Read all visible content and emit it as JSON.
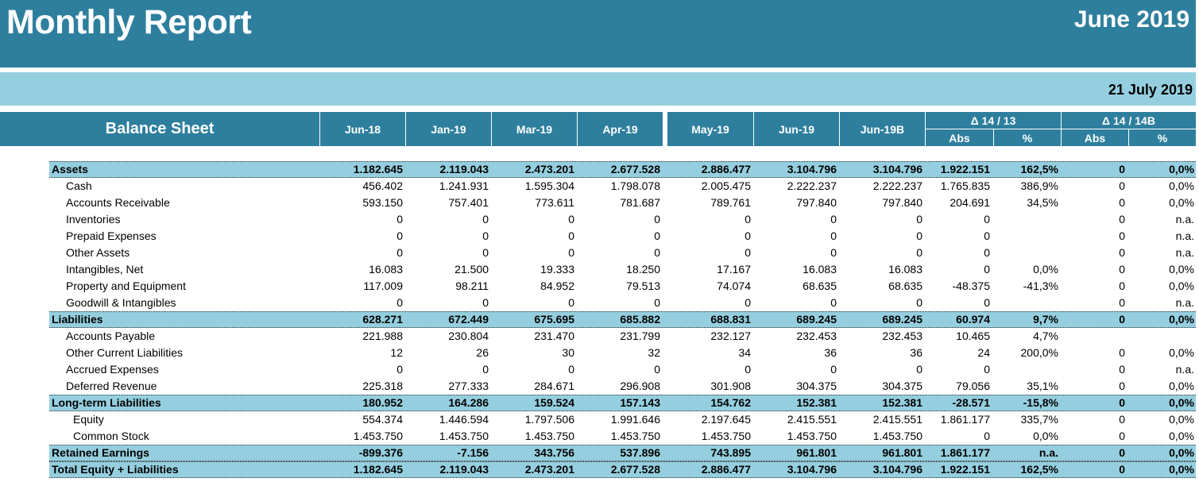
{
  "header": {
    "title": "Monthly Report",
    "period": "June 2019"
  },
  "subheader": {
    "date": "21 July 2019"
  },
  "table": {
    "title": "Balance Sheet",
    "columns": [
      "Jun-18",
      "Jan-19",
      "Mar-19",
      "Apr-19",
      "May-19",
      "Jun-19",
      "Jun-19B"
    ],
    "groups": [
      {
        "label": "Δ 14 / 13",
        "sub": [
          "Abs",
          "%"
        ]
      },
      {
        "label": "Δ 14 / 14B",
        "sub": [
          "Abs",
          "%"
        ]
      }
    ],
    "rows": [
      {
        "label": "Assets",
        "level": 0,
        "highlight": true,
        "values": [
          "1.182.645",
          "2.119.043",
          "2.473.201",
          "2.677.528",
          "2.886.477",
          "3.104.796",
          "3.104.796",
          "1.922.151",
          "162,5%",
          "0",
          "0,0%"
        ]
      },
      {
        "label": "Cash",
        "level": 1,
        "highlight": false,
        "values": [
          "456.402",
          "1.241.931",
          "1.595.304",
          "1.798.078",
          "2.005.475",
          "2.222.237",
          "2.222.237",
          "1.765.835",
          "386,9%",
          "0",
          "0,0%"
        ]
      },
      {
        "label": "Accounts Receivable",
        "level": 1,
        "highlight": false,
        "values": [
          "593.150",
          "757.401",
          "773.611",
          "781.687",
          "789.761",
          "797.840",
          "797.840",
          "204.691",
          "34,5%",
          "0",
          "0,0%"
        ]
      },
      {
        "label": "Inventories",
        "level": 1,
        "highlight": false,
        "values": [
          "0",
          "0",
          "0",
          "0",
          "0",
          "0",
          "0",
          "0",
          "",
          "0",
          "n.a."
        ]
      },
      {
        "label": "Prepaid Expenses",
        "level": 1,
        "highlight": false,
        "values": [
          "0",
          "0",
          "0",
          "0",
          "0",
          "0",
          "0",
          "0",
          "",
          "0",
          "n.a."
        ]
      },
      {
        "label": "Other Assets",
        "level": 1,
        "highlight": false,
        "values": [
          "0",
          "0",
          "0",
          "0",
          "0",
          "0",
          "0",
          "0",
          "",
          "0",
          "n.a."
        ]
      },
      {
        "label": "Intangibles, Net",
        "level": 1,
        "highlight": false,
        "values": [
          "16.083",
          "21.500",
          "19.333",
          "18.250",
          "17.167",
          "16.083",
          "16.083",
          "0",
          "0,0%",
          "0",
          "0,0%"
        ]
      },
      {
        "label": "Property and Equipment",
        "level": 1,
        "highlight": false,
        "values": [
          "117.009",
          "98.211",
          "84.952",
          "79.513",
          "74.074",
          "68.635",
          "68.635",
          "-48.375",
          "-41,3%",
          "0",
          "0,0%"
        ]
      },
      {
        "label": "Goodwill & Intangibles",
        "level": 1,
        "highlight": false,
        "values": [
          "0",
          "0",
          "0",
          "0",
          "0",
          "0",
          "0",
          "0",
          "",
          "0",
          "n.a."
        ]
      },
      {
        "label": "Liabilities",
        "level": 0,
        "highlight": true,
        "values": [
          "628.271",
          "672.449",
          "675.695",
          "685.882",
          "688.831",
          "689.245",
          "689.245",
          "60.974",
          "9,7%",
          "0",
          "0,0%"
        ]
      },
      {
        "label": "Accounts Payable",
        "level": 1,
        "highlight": false,
        "values": [
          "221.988",
          "230.804",
          "231.470",
          "231.799",
          "232.127",
          "232.453",
          "232.453",
          "10.465",
          "4,7%",
          "",
          ""
        ]
      },
      {
        "label": "Other Current Liabilities",
        "level": 1,
        "highlight": false,
        "values": [
          "12",
          "26",
          "30",
          "32",
          "34",
          "36",
          "36",
          "24",
          "200,0%",
          "0",
          "0,0%"
        ]
      },
      {
        "label": "Accrued Expenses",
        "level": 1,
        "highlight": false,
        "values": [
          "0",
          "0",
          "0",
          "0",
          "0",
          "0",
          "0",
          "0",
          "",
          "0",
          "n.a."
        ]
      },
      {
        "label": "Deferred Revenue",
        "level": 1,
        "highlight": false,
        "values": [
          "225.318",
          "277.333",
          "284.671",
          "296.908",
          "301.908",
          "304.375",
          "304.375",
          "79.056",
          "35,1%",
          "0",
          "0,0%"
        ]
      },
      {
        "label": "Long-term Liabilities",
        "level": 0,
        "highlight": true,
        "values": [
          "180.952",
          "164.286",
          "159.524",
          "157.143",
          "154.762",
          "152.381",
          "152.381",
          "-28.571",
          "-15,8%",
          "0",
          "0,0%"
        ]
      },
      {
        "label": "Equity",
        "level": 2,
        "highlight": false,
        "values": [
          "554.374",
          "1.446.594",
          "1.797.506",
          "1.991.646",
          "2.197.645",
          "2.415.551",
          "2.415.551",
          "1.861.177",
          "335,7%",
          "0",
          "0,0%"
        ]
      },
      {
        "label": "Common Stock",
        "level": 2,
        "highlight": false,
        "values": [
          "1.453.750",
          "1.453.750",
          "1.453.750",
          "1.453.750",
          "1.453.750",
          "1.453.750",
          "1.453.750",
          "0",
          "0,0%",
          "0",
          "0,0%"
        ]
      },
      {
        "label": "Retained Earnings",
        "level": 0,
        "highlight": true,
        "values": [
          "-899.376",
          "-7.156",
          "343.756",
          "537.896",
          "743.895",
          "961.801",
          "961.801",
          "1.861.177",
          "n.a.",
          "0",
          "0,0%"
        ]
      },
      {
        "label": "Total Equity + Liabilities",
        "level": 0,
        "highlight": true,
        "values": [
          "1.182.645",
          "2.119.043",
          "2.473.201",
          "2.677.528",
          "2.886.477",
          "3.104.796",
          "3.104.796",
          "1.922.151",
          "162,5%",
          "0",
          "0,0%"
        ]
      }
    ]
  },
  "colors": {
    "header_bg": "#2e7f9e",
    "band_bg": "#95cfdf",
    "highlight_bg": "#95cfdf"
  }
}
